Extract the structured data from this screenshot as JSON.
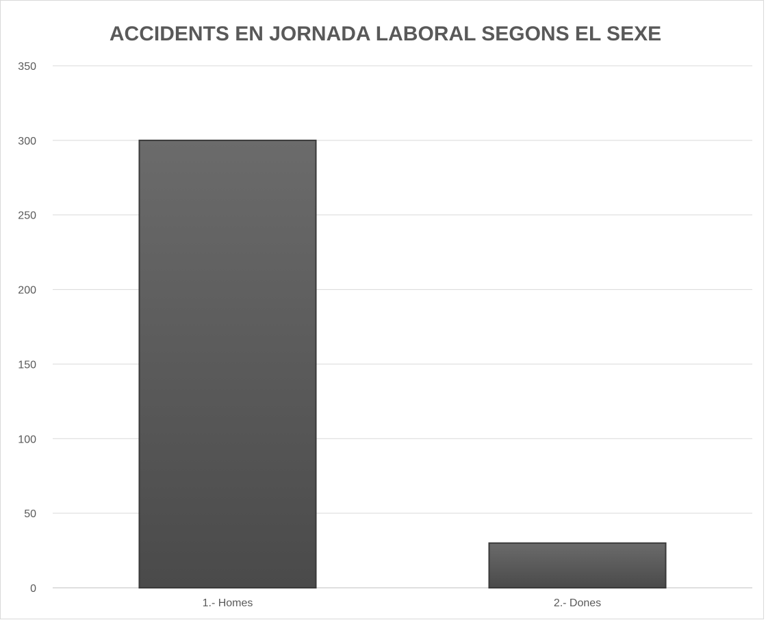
{
  "chart_data": {
    "type": "bar",
    "title": "ACCIDENTS EN JORNADA LABORAL SEGONS EL SEXE",
    "xlabel": "",
    "ylabel": "",
    "categories": [
      "1.- Homes",
      "2.- Dones"
    ],
    "values": [
      300,
      30
    ],
    "ylim": [
      0,
      350
    ],
    "yticks": [
      0,
      50,
      100,
      150,
      200,
      250,
      300,
      350
    ],
    "grid": true,
    "legend": "none",
    "colors": {
      "bar_top": "#6b6b6b",
      "bar_bottom": "#4a4a4a",
      "bar_edge": "#3a3a3a",
      "text": "#595959",
      "grid": "#d9d9d9"
    }
  }
}
